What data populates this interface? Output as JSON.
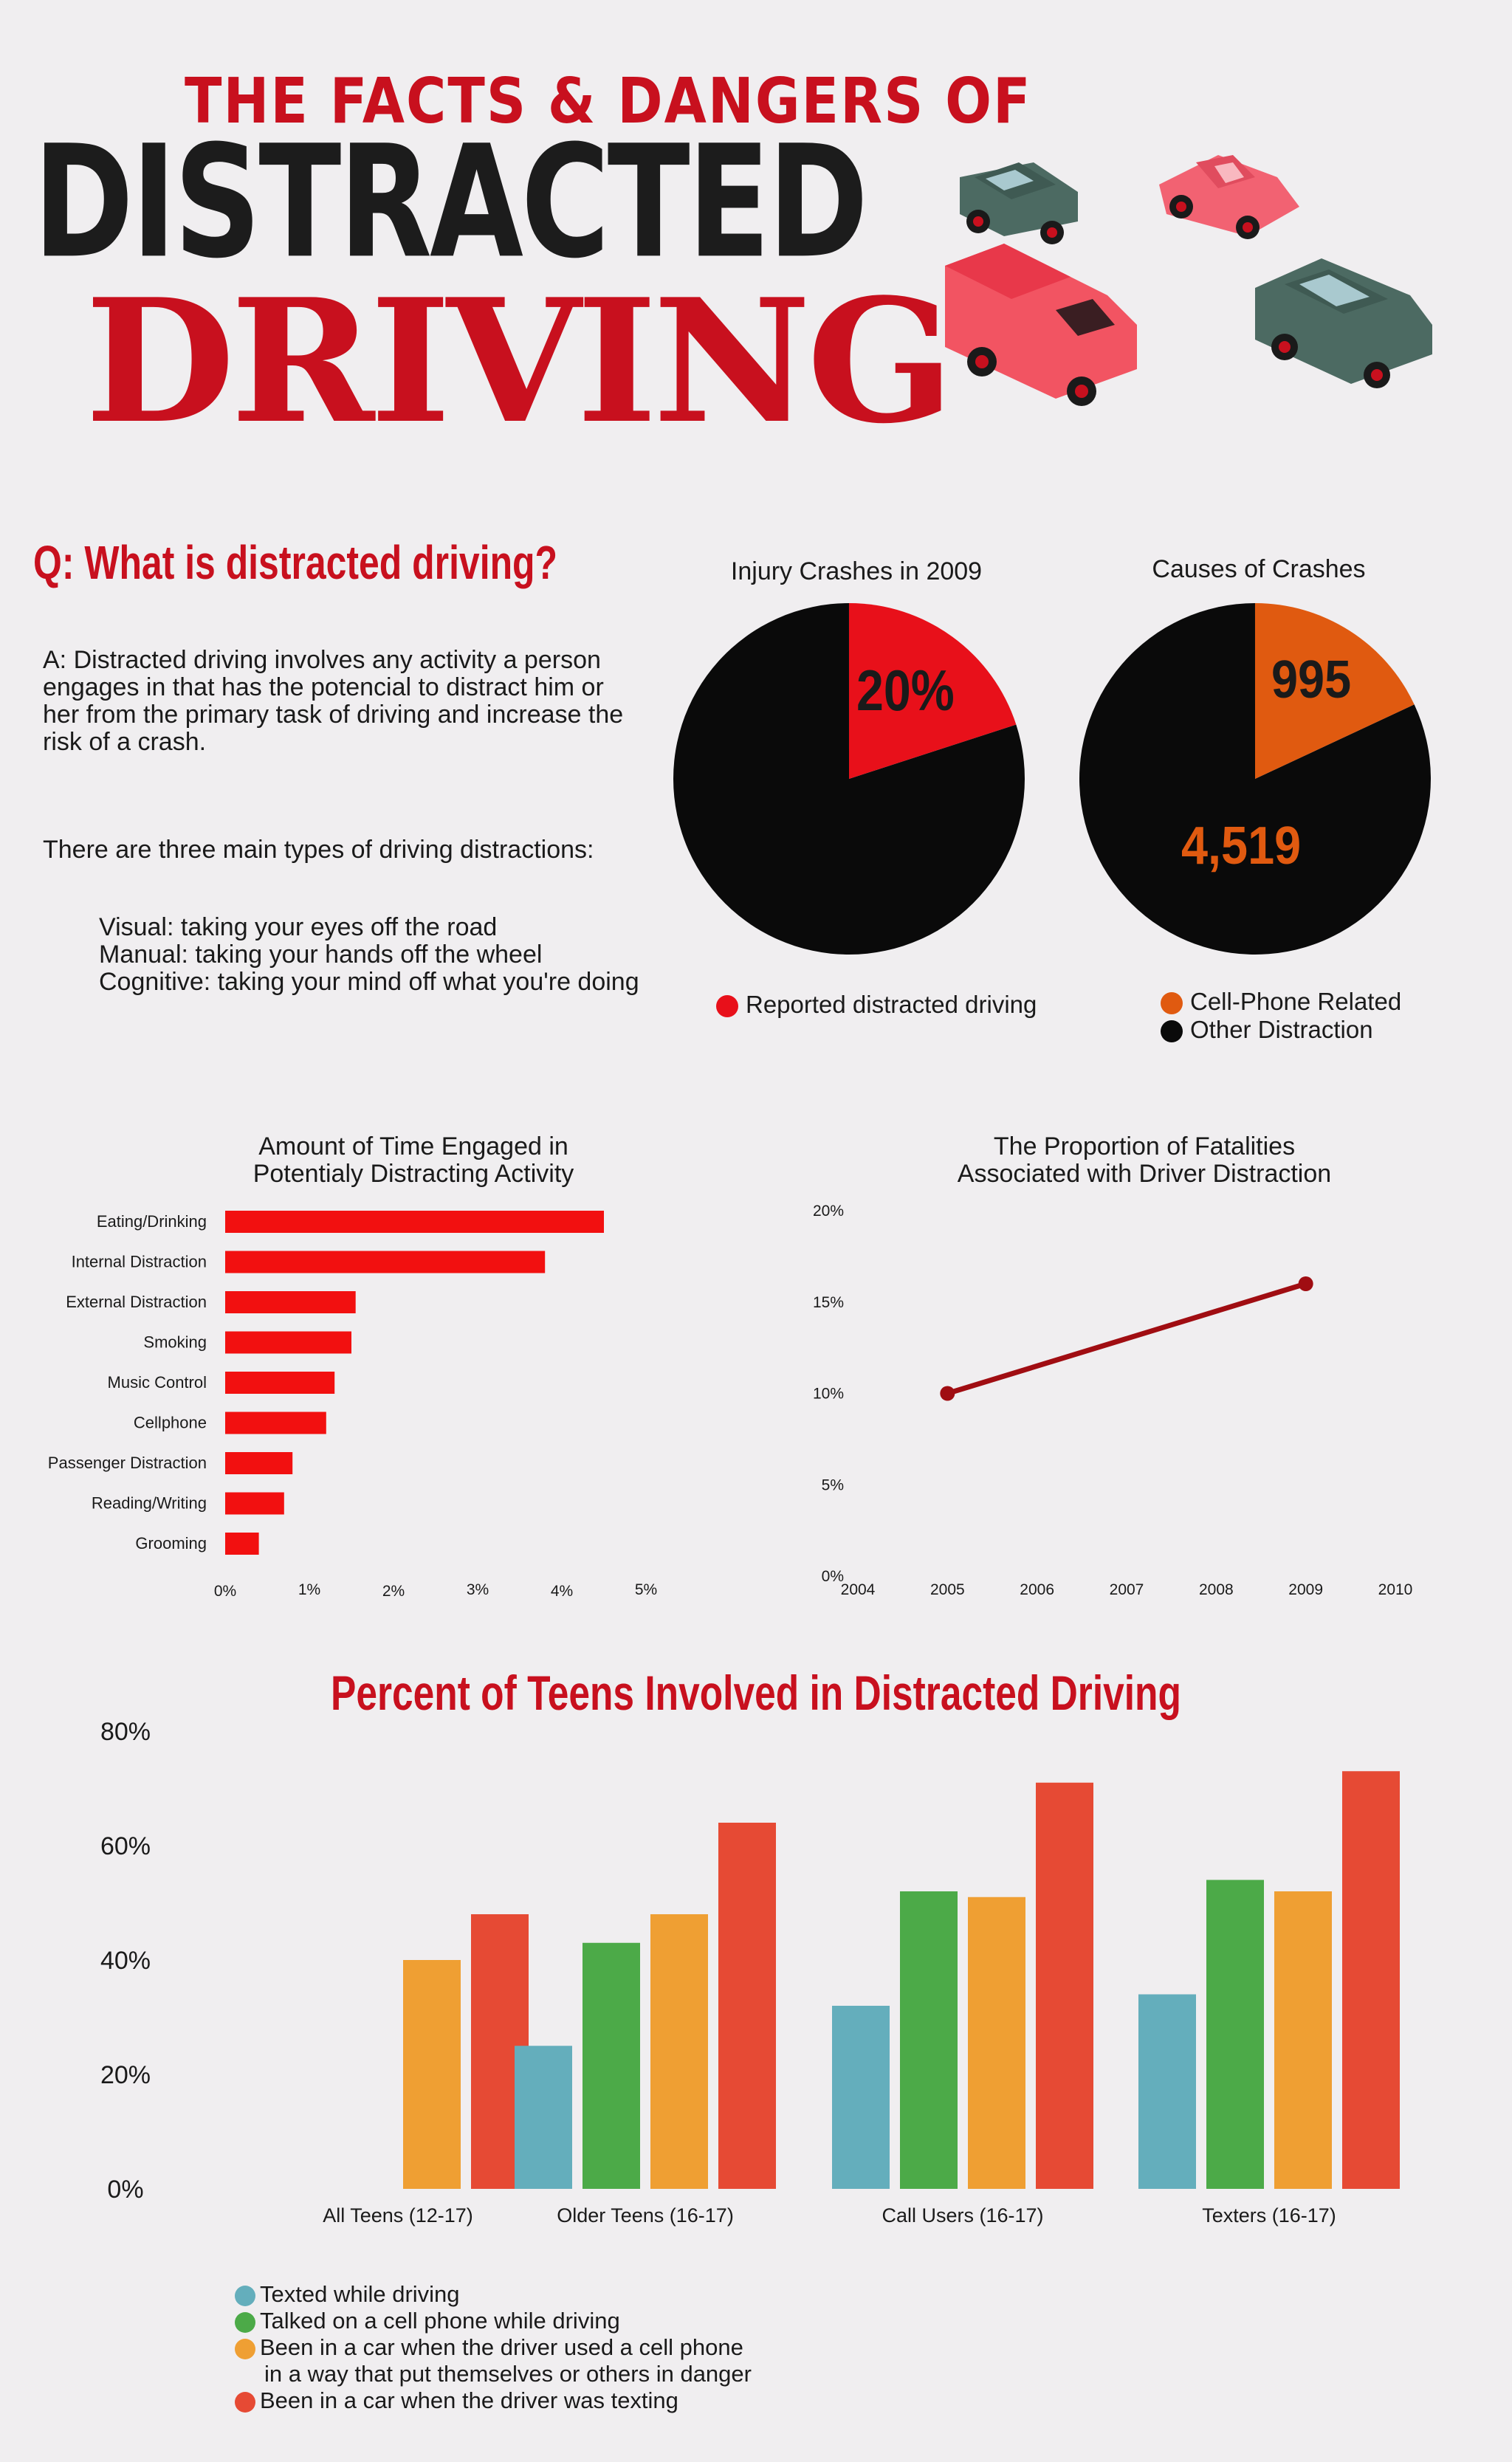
{
  "header": {
    "line1": "THE FACTS & DANGERS OF",
    "line2": "DISTRACTED",
    "line3": "DRIVING"
  },
  "intro": {
    "question": "Q: What is distracted driving?",
    "answer": "A: Distracted driving involves any activity a person engages in that has the potencial to distract him or her from the primary task of driving and increase the risk of a crash.",
    "types_intro": "There are three main types of driving distractions:",
    "types": [
      "Visual: taking your eyes off the road",
      "Manual: taking your hands off the wheel",
      "Cognitive: taking your mind off what you're doing"
    ]
  },
  "colors": {
    "red": "#e8101a",
    "orange": "#e05a10",
    "black": "#0a0a0a",
    "bar_red": "#f21010",
    "line_red": "#a00d12",
    "teal": "#64aebc",
    "green": "#4caa48",
    "amber": "#ef9f33",
    "tomato": "#e64a34"
  },
  "chart_data": [
    {
      "type": "pie",
      "title": "Injury Crashes in 2009",
      "slices": [
        {
          "name": "Reported distracted driving",
          "value": 20,
          "label": "20%",
          "color": "#e8101a"
        },
        {
          "name": "",
          "value": 80,
          "color": "#0a0a0a"
        }
      ],
      "legend": [
        "Reported distracted driving"
      ]
    },
    {
      "type": "pie",
      "title": "Causes of Crashes",
      "slices": [
        {
          "name": "Cell-Phone Related",
          "value": 995,
          "label": "995",
          "color": "#e05a10"
        },
        {
          "name": "Other Distraction",
          "value": 4519,
          "label": "4,519",
          "color": "#0a0a0a"
        }
      ],
      "legend": [
        "Cell-Phone Related",
        "Other Distraction"
      ]
    },
    {
      "type": "bar",
      "orientation": "horizontal",
      "title": "Amount of Time Engaged in Potentialy Distracting Activity",
      "categories": [
        "Eating/Drinking",
        "Internal Distraction",
        "External Distraction",
        "Smoking",
        "Music Control",
        "Cellphone",
        "Passenger Distraction",
        "Reading/Writing",
        "Grooming"
      ],
      "values": [
        4.5,
        3.8,
        1.55,
        1.5,
        1.3,
        1.2,
        0.8,
        0.7,
        0.4
      ],
      "xticks": [
        "0%",
        "1%",
        "2%",
        "3%",
        "4%",
        "5%"
      ],
      "xlim": [
        0,
        5
      ]
    },
    {
      "type": "line",
      "title": "The Proportion of Fatalities Associated with Driver Distraction",
      "x": [
        2005,
        2009
      ],
      "y": [
        10,
        16
      ],
      "xticks": [
        "2004",
        "2005",
        "2006",
        "2007",
        "2008",
        "2009",
        "2010"
      ],
      "yticks": [
        "0%",
        "5%",
        "10%",
        "15%",
        "20%"
      ],
      "xlim": [
        2004,
        2010
      ],
      "ylim": [
        0,
        20
      ]
    },
    {
      "type": "bar",
      "title": "Percent of Teens Involved in Distracted Driving",
      "categories": [
        "All Teens (12-17)",
        "Older Teens (16-17)",
        "Call Users (16-17)",
        "Texters (16-17)"
      ],
      "series": [
        {
          "name": "Texted while driving",
          "values": [
            null,
            25,
            32,
            34
          ],
          "color": "#64aebc"
        },
        {
          "name": "Talked on a cell phone while driving",
          "values": [
            null,
            43,
            52,
            54
          ],
          "color": "#4caa48"
        },
        {
          "name": "Been in a car when the driver used a cell phone in a way that put themselves or others in danger",
          "values": [
            40,
            48,
            51,
            52
          ],
          "color": "#ef9f33"
        },
        {
          "name": "Been in a car when the driver was texting",
          "values": [
            48,
            64,
            71,
            73
          ],
          "color": "#e64a34"
        }
      ],
      "yticks": [
        "0%",
        "20%",
        "40%",
        "60%",
        "80%"
      ],
      "ylim": [
        0,
        80
      ],
      "legend_lines": [
        "Texted while driving",
        "Talked on a cell phone while driving",
        "Been in a car when the driver used a cell phone",
        "in a way that put themselves or others in danger",
        "Been in a car when the driver was texting"
      ]
    }
  ]
}
